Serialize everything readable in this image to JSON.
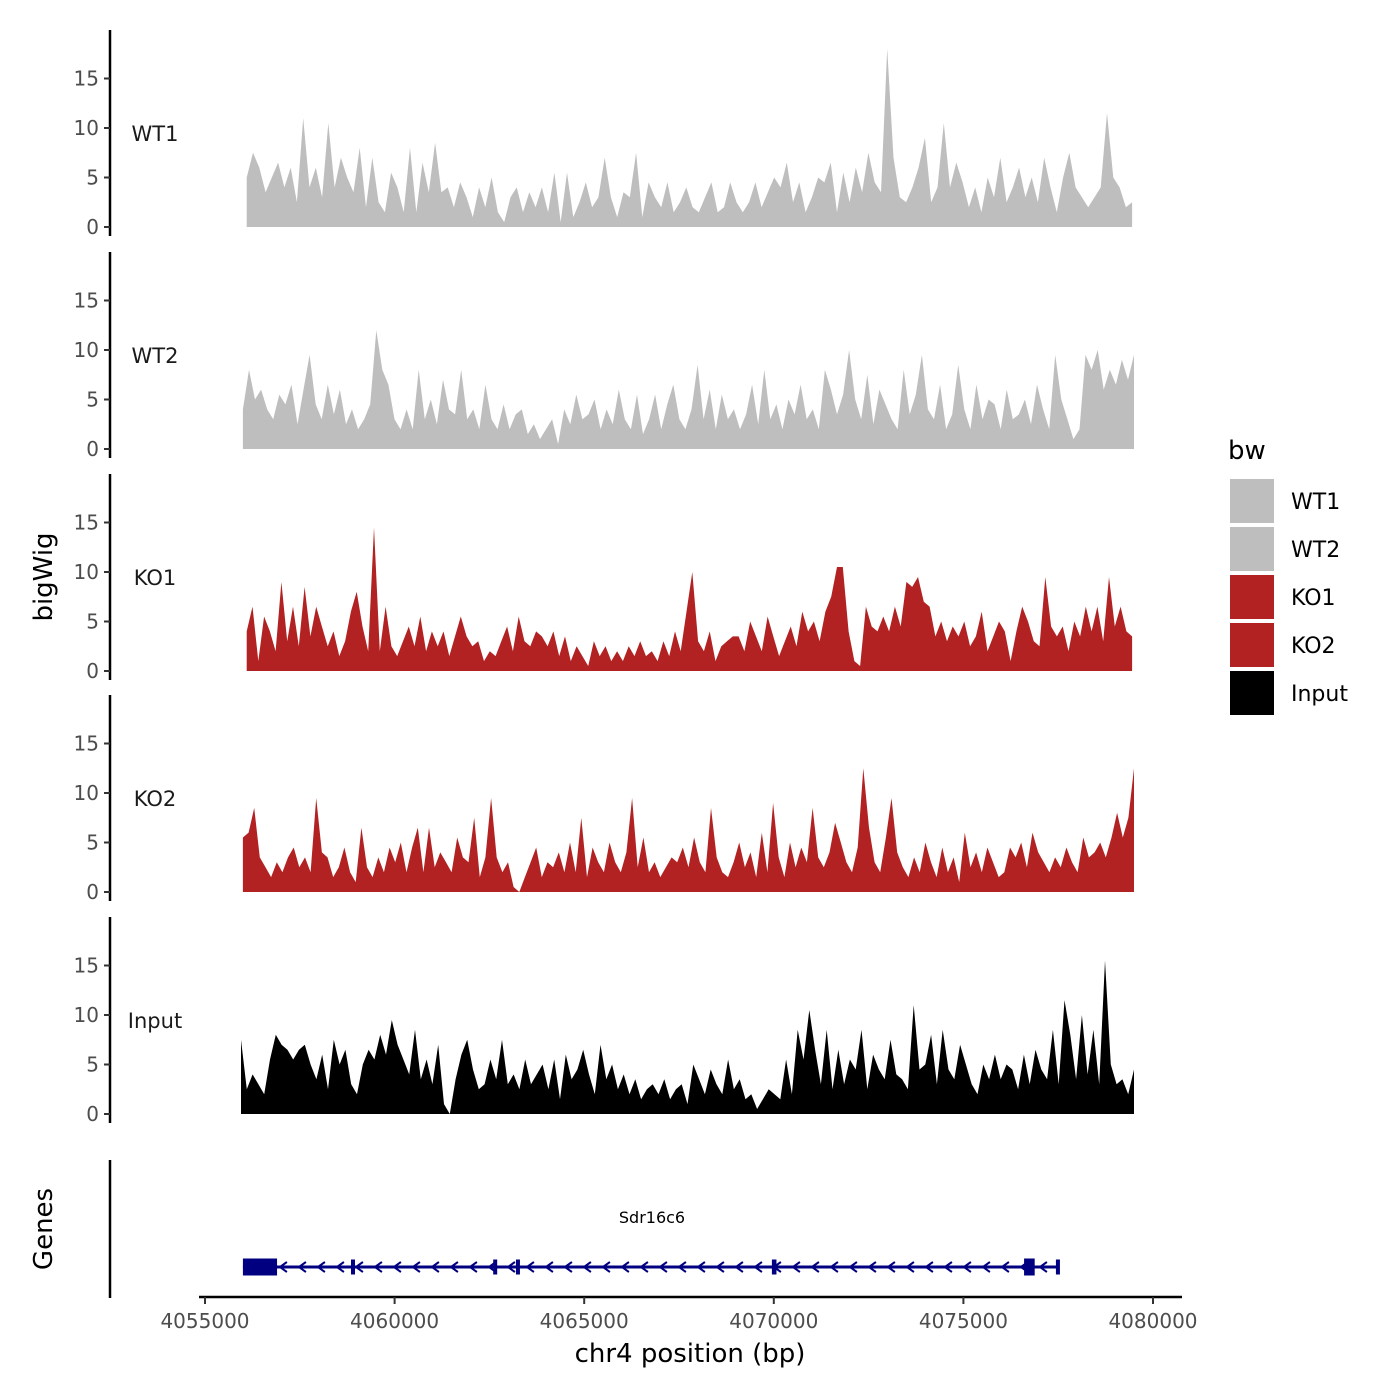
{
  "chart_data": {
    "type": "area",
    "x_unit": "bp",
    "xlabel": "chr4 position (bp)",
    "ylabel": "bigWig",
    "gene_track_label": "Genes",
    "xlim": [
      4055000,
      4080000
    ],
    "x_ticks": [
      4055000,
      4060000,
      4065000,
      4070000,
      4075000,
      4080000
    ],
    "x_tick_labels": [
      "4055000",
      "4060000",
      "4065000",
      "4070000",
      "4075000",
      "4080000"
    ],
    "ylim": [
      0,
      20
    ],
    "y_ticks": [
      0,
      5,
      10,
      15
    ],
    "y_tick_labels": [
      "0",
      "5",
      "10",
      "15"
    ],
    "legend": {
      "title": "bw",
      "entries": [
        {
          "label": "WT1",
          "color": "#bebebe"
        },
        {
          "label": "WT2",
          "color": "#bebebe"
        },
        {
          "label": "KO1",
          "color": "#b22222"
        },
        {
          "label": "KO2",
          "color": "#b22222"
        },
        {
          "label": "Input",
          "color": "#000000"
        }
      ]
    },
    "series": [
      {
        "name": "WT1",
        "color": "#bebebe",
        "x_start": 4056100,
        "x_end": 4079450,
        "values": [
          5.0,
          7.5,
          6.0,
          3.5,
          5.0,
          6.5,
          4.0,
          6.0,
          2.5,
          11.0,
          4.0,
          6.0,
          3.0,
          10.5,
          4.0,
          7.0,
          5.0,
          3.5,
          8.0,
          2.0,
          7.0,
          2.5,
          1.5,
          5.5,
          4.0,
          1.5,
          8.0,
          1.5,
          6.5,
          3.5,
          8.5,
          3.5,
          4.0,
          2.0,
          4.5,
          3.0,
          1.0,
          4.0,
          2.0,
          5.0,
          1.5,
          0.5,
          3.0,
          4.0,
          1.5,
          3.5,
          2.0,
          4.0,
          1.5,
          5.5,
          0.5,
          5.5,
          1.0,
          2.5,
          4.5,
          2.0,
          3.0,
          7.0,
          3.0,
          1.0,
          3.5,
          3.0,
          7.5,
          1.0,
          4.5,
          3.0,
          2.0,
          4.5,
          1.5,
          2.5,
          4.0,
          2.0,
          1.5,
          3.0,
          4.5,
          1.5,
          2.0,
          4.5,
          2.5,
          1.5,
          2.5,
          4.5,
          2.0,
          3.5,
          5.0,
          4.0,
          6.5,
          2.5,
          4.5,
          1.5,
          3.0,
          5.0,
          4.5,
          6.5,
          1.5,
          5.5,
          2.5,
          6.0,
          3.5,
          7.5,
          4.5,
          3.5,
          18.0,
          7.0,
          3.0,
          2.5,
          4.0,
          6.0,
          9.0,
          2.5,
          4.0,
          10.5,
          4.0,
          6.5,
          4.5,
          2.0,
          4.0,
          1.5,
          5.0,
          3.0,
          7.0,
          2.5,
          4.0,
          6.0,
          3.0,
          5.0,
          2.5,
          7.0,
          4.0,
          1.5,
          5.0,
          7.5,
          4.0,
          3.0,
          2.0,
          3.0,
          4.0,
          11.5,
          5.0,
          4.0,
          2.0,
          2.5
        ]
      },
      {
        "name": "WT2",
        "color": "#bebebe",
        "x_start": 4056000,
        "x_end": 4079500,
        "values": [
          4.0,
          8.0,
          5.0,
          6.0,
          4.0,
          3.0,
          5.5,
          4.5,
          6.5,
          2.5,
          6.0,
          9.5,
          4.5,
          3.0,
          6.5,
          3.5,
          6.0,
          2.5,
          4.0,
          2.0,
          3.0,
          4.5,
          12.0,
          8.0,
          6.5,
          3.0,
          2.0,
          4.0,
          2.0,
          8.0,
          3.0,
          5.0,
          2.5,
          7.0,
          4.0,
          3.5,
          8.0,
          3.0,
          4.0,
          2.0,
          6.5,
          3.0,
          2.0,
          4.5,
          2.0,
          3.5,
          4.0,
          1.5,
          2.5,
          1.0,
          2.0,
          3.0,
          0.5,
          4.0,
          2.5,
          5.5,
          3.0,
          3.5,
          5.0,
          2.0,
          4.0,
          2.5,
          6.0,
          3.0,
          2.0,
          5.5,
          1.5,
          3.0,
          5.5,
          2.0,
          4.5,
          6.5,
          3.0,
          2.0,
          4.0,
          8.5,
          3.0,
          6.0,
          2.0,
          5.5,
          3.0,
          4.0,
          2.0,
          3.5,
          6.5,
          2.5,
          8.0,
          3.0,
          4.5,
          2.0,
          5.0,
          3.5,
          6.5,
          3.0,
          4.0,
          2.0,
          8.0,
          6.0,
          3.5,
          5.5,
          10.0,
          5.0,
          3.0,
          7.5,
          2.5,
          6.0,
          4.5,
          3.0,
          2.0,
          8.0,
          3.5,
          5.5,
          9.5,
          4.0,
          3.0,
          6.5,
          2.0,
          3.5,
          8.5,
          4.0,
          2.0,
          6.5,
          3.0,
          5.0,
          4.5,
          2.0,
          6.0,
          3.0,
          3.5,
          5.0,
          2.5,
          6.5,
          4.0,
          2.0,
          9.5,
          5.0,
          3.0,
          1.0,
          2.0,
          9.5,
          8.0,
          10.0,
          6.0,
          8.0,
          6.5,
          9.0,
          7.0,
          9.5
        ]
      },
      {
        "name": "KO1",
        "color": "#b22222",
        "x_start": 4056100,
        "x_end": 4079450,
        "values": [
          4.0,
          6.5,
          1.0,
          5.5,
          4.0,
          2.0,
          9.0,
          3.0,
          6.5,
          2.5,
          8.5,
          3.5,
          6.5,
          4.5,
          2.5,
          4.0,
          1.5,
          3.0,
          6.0,
          8.0,
          4.5,
          2.0,
          14.5,
          2.0,
          6.5,
          2.5,
          1.5,
          3.0,
          4.5,
          2.5,
          5.5,
          2.0,
          4.0,
          2.5,
          4.0,
          1.5,
          3.5,
          5.5,
          3.5,
          2.5,
          3.0,
          1.0,
          2.0,
          1.5,
          3.0,
          4.5,
          2.0,
          5.5,
          3.0,
          2.5,
          4.0,
          3.5,
          2.5,
          4.0,
          1.5,
          3.5,
          1.0,
          2.5,
          1.5,
          0.5,
          3.0,
          1.5,
          2.5,
          1.0,
          2.0,
          1.0,
          2.5,
          1.5,
          3.0,
          1.5,
          2.0,
          1.0,
          3.0,
          1.5,
          4.0,
          2.0,
          6.0,
          10.0,
          3.0,
          2.0,
          4.0,
          1.0,
          2.5,
          3.0,
          3.5,
          3.5,
          2.0,
          5.0,
          3.5,
          2.0,
          5.5,
          3.5,
          1.5,
          3.0,
          4.5,
          2.5,
          6.0,
          4.0,
          5.0,
          3.0,
          6.0,
          7.5,
          10.5,
          10.5,
          4.0,
          1.0,
          0.5,
          6.5,
          4.5,
          4.0,
          5.5,
          4.0,
          6.5,
          4.5,
          9.0,
          8.5,
          9.5,
          7.0,
          6.5,
          3.5,
          5.0,
          3.0,
          4.5,
          3.5,
          5.0,
          2.5,
          3.5,
          6.0,
          2.0,
          3.5,
          5.0,
          4.0,
          1.0,
          4.0,
          6.5,
          5.0,
          3.0,
          2.5,
          9.5,
          4.5,
          3.5,
          4.5,
          2.0,
          5.0,
          3.5,
          6.5,
          4.0,
          6.5,
          3.0,
          9.5,
          4.5,
          6.5,
          4.0,
          3.5
        ]
      },
      {
        "name": "KO2",
        "color": "#b22222",
        "x_start": 4056000,
        "x_end": 4079500,
        "values": [
          5.5,
          6.0,
          8.5,
          3.5,
          2.5,
          1.5,
          3.0,
          2.0,
          3.5,
          4.5,
          2.5,
          3.5,
          2.0,
          9.5,
          4.0,
          3.5,
          1.5,
          2.5,
          4.5,
          2.0,
          1.0,
          6.5,
          2.5,
          1.5,
          3.5,
          2.0,
          4.5,
          3.0,
          5.0,
          2.0,
          4.5,
          6.5,
          2.0,
          6.5,
          2.5,
          4.0,
          3.0,
          2.0,
          5.5,
          3.5,
          3.0,
          7.5,
          1.5,
          3.5,
          9.5,
          3.5,
          2.0,
          3.0,
          0.5,
          0.0,
          1.5,
          3.0,
          4.5,
          1.5,
          3.0,
          2.5,
          4.0,
          2.0,
          5.0,
          2.0,
          7.5,
          1.5,
          4.5,
          3.0,
          2.0,
          5.0,
          3.0,
          2.0,
          4.0,
          9.5,
          2.5,
          5.5,
          2.0,
          3.0,
          1.5,
          2.5,
          3.5,
          3.0,
          4.5,
          2.5,
          5.5,
          3.0,
          2.0,
          8.5,
          3.5,
          2.0,
          1.5,
          3.0,
          5.0,
          2.5,
          4.0,
          1.5,
          6.0,
          2.0,
          9.0,
          3.5,
          1.5,
          5.0,
          2.5,
          4.5,
          3.0,
          8.5,
          3.5,
          2.5,
          4.0,
          7.0,
          5.0,
          3.0,
          2.0,
          4.5,
          12.5,
          6.5,
          3.0,
          2.0,
          5.5,
          9.5,
          4.0,
          2.5,
          1.5,
          3.5,
          2.0,
          5.0,
          3.0,
          1.5,
          4.5,
          2.0,
          3.5,
          1.0,
          6.0,
          2.5,
          4.0,
          2.0,
          4.5,
          3.0,
          1.5,
          2.0,
          4.5,
          3.5,
          5.0,
          2.5,
          6.0,
          4.0,
          3.0,
          2.0,
          3.5,
          2.5,
          4.5,
          3.0,
          2.0,
          5.5,
          3.5,
          4.0,
          5.0,
          3.5,
          5.5,
          8.0,
          5.5,
          7.5,
          12.5
        ]
      },
      {
        "name": "Input",
        "color": "#000000",
        "x_start": 4055950,
        "x_end": 4079500,
        "values": [
          7.5,
          2.5,
          4.0,
          3.0,
          2.0,
          5.5,
          8.0,
          7.0,
          6.5,
          5.5,
          6.5,
          7.0,
          5.0,
          3.5,
          6.0,
          2.5,
          7.5,
          5.0,
          6.5,
          3.0,
          2.0,
          5.0,
          6.5,
          5.5,
          8.0,
          6.0,
          9.5,
          7.0,
          5.5,
          4.0,
          8.5,
          3.5,
          5.5,
          3.0,
          7.0,
          1.0,
          0.0,
          3.5,
          6.0,
          7.5,
          4.5,
          2.5,
          3.0,
          5.5,
          3.5,
          7.5,
          3.0,
          4.0,
          2.5,
          5.5,
          3.0,
          4.0,
          5.0,
          2.5,
          5.5,
          1.5,
          6.0,
          3.5,
          4.5,
          6.5,
          4.0,
          2.0,
          7.0,
          3.5,
          5.0,
          2.5,
          4.0,
          2.0,
          3.5,
          1.5,
          2.5,
          3.0,
          2.0,
          3.5,
          1.5,
          2.5,
          3.0,
          1.0,
          5.0,
          3.5,
          2.0,
          4.5,
          3.0,
          2.0,
          5.5,
          2.5,
          3.5,
          1.5,
          2.0,
          0.5,
          1.5,
          2.5,
          2.0,
          1.5,
          5.5,
          2.0,
          8.5,
          5.5,
          10.5,
          6.5,
          3.0,
          8.5,
          2.5,
          6.5,
          3.0,
          5.5,
          4.5,
          8.5,
          2.5,
          6.0,
          4.5,
          3.5,
          7.5,
          4.0,
          3.5,
          2.5,
          11.0,
          4.5,
          5.0,
          8.0,
          3.0,
          8.5,
          4.5,
          3.5,
          7.0,
          5.0,
          3.0,
          2.0,
          5.0,
          3.5,
          6.0,
          3.5,
          5.0,
          4.5,
          2.5,
          6.0,
          3.0,
          6.5,
          4.5,
          3.5,
          8.5,
          3.0,
          11.5,
          8.0,
          3.5,
          10.0,
          4.0,
          8.5,
          3.0,
          15.5,
          5.0,
          3.0,
          3.5,
          2.0,
          4.5
        ]
      }
    ],
    "gene": {
      "name": "Sdr16c6",
      "strand": "-",
      "start": 4056000,
      "end": 4077500,
      "color": "#000080",
      "exons": [
        {
          "start": 4056000,
          "end": 4056900
        },
        {
          "start": 4058850,
          "end": 4058930
        },
        {
          "start": 4062600,
          "end": 4062700
        },
        {
          "start": 4063200,
          "end": 4063290
        },
        {
          "start": 4069950,
          "end": 4070070
        },
        {
          "start": 4076600,
          "end": 4076880
        },
        {
          "start": 4077440,
          "end": 4077500
        }
      ]
    }
  }
}
